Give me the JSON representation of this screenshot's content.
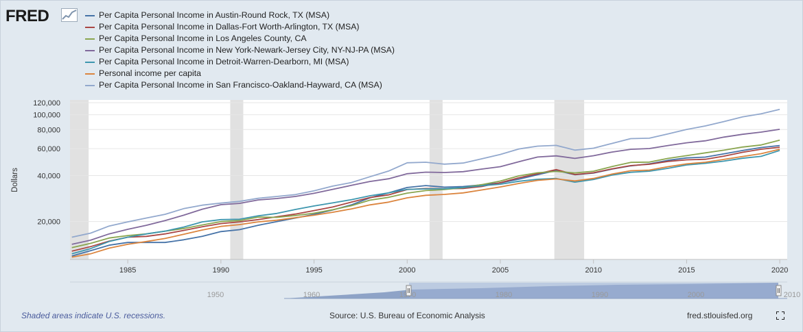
{
  "brand": {
    "logo_text": "FRED"
  },
  "legend_label": {
    "austin": "Per Capita Personal Income in Austin-Round Rock, TX (MSA)",
    "dallas": "Per Capita Personal Income in Dallas-Fort Worth-Arlington, TX (MSA)",
    "la": "Per Capita Personal Income in Los Angeles County, CA",
    "ny": "Per Capita Personal Income in New York-Newark-Jersey City, NY-NJ-PA (MSA)",
    "detroit": "Per Capita Personal Income in Detroit-Warren-Dearborn, MI (MSA)",
    "us": "Personal income per capita",
    "sf": "Per Capita Personal Income in San Francisco-Oakland-Hayward, CA (MSA)"
  },
  "footer": {
    "recession_note": "Shaded areas indicate U.S. recessions.",
    "source": "Source: U.S. Bureau of Economic Analysis",
    "site": "fred.stlouisfed.org"
  },
  "chart_data": {
    "type": "line",
    "title": "",
    "xlabel": "",
    "ylabel": "Dollars",
    "y_scale": "log",
    "xlim": [
      1981.9,
      2020.4
    ],
    "ylim": [
      11300,
      125000
    ],
    "y_ticks": [
      20000,
      40000,
      60000,
      80000,
      100000,
      120000
    ],
    "y_tick_labels": [
      "20,000",
      "40,000",
      "60,000",
      "80,000",
      "100,000",
      "120,000"
    ],
    "x_ticks": [
      1985,
      1990,
      1995,
      2000,
      2005,
      2010,
      2015,
      2020
    ],
    "grid": "horizontal",
    "recessions": [
      [
        1981.9,
        1982.9
      ],
      [
        1990.5,
        1991.2
      ],
      [
        2001.2,
        2001.9
      ],
      [
        2007.9,
        2009.5
      ]
    ],
    "x": [
      1982,
      1983,
      1984,
      1985,
      1986,
      1987,
      1988,
      1989,
      1990,
      1991,
      1992,
      1993,
      1994,
      1995,
      1996,
      1997,
      1998,
      1999,
      2000,
      2001,
      2002,
      2003,
      2004,
      2005,
      2006,
      2007,
      2008,
      2009,
      2010,
      2011,
      2012,
      2013,
      2014,
      2015,
      2016,
      2017,
      2018,
      2019,
      2020
    ],
    "series": [
      {
        "name": "Per Capita Personal Income in Austin-Round Rock, TX (MSA)",
        "color": "#4572a7",
        "values": [
          11900,
          12900,
          14000,
          14600,
          14600,
          14600,
          15200,
          16000,
          17200,
          17700,
          18900,
          20000,
          21100,
          22300,
          23800,
          25700,
          28600,
          30800,
          33400,
          34400,
          33600,
          33900,
          34800,
          35800,
          37900,
          40500,
          43200,
          40500,
          41500,
          44100,
          46300,
          47700,
          50300,
          52200,
          52800,
          55500,
          58300,
          61000,
          62900
        ]
      },
      {
        "name": "Per Capita Personal Income in Dallas-Fort Worth-Arlington, TX (MSA)",
        "color": "#aa4643",
        "values": [
          12800,
          13700,
          14900,
          15800,
          16000,
          16600,
          17500,
          18500,
          19400,
          19900,
          20600,
          21500,
          22400,
          23600,
          24900,
          26800,
          28700,
          29900,
          32400,
          32900,
          32800,
          32900,
          33900,
          35900,
          38700,
          41100,
          43800,
          40600,
          41700,
          44300,
          46500,
          47400,
          49500,
          50700,
          51100,
          53600,
          56800,
          59500,
          61300
        ]
      },
      {
        "name": "Per Capita Personal Income in Los Angeles County, CA",
        "color": "#89a54e",
        "values": [
          13500,
          14400,
          15600,
          16200,
          16600,
          17300,
          18000,
          19000,
          20000,
          20300,
          21400,
          21300,
          21900,
          22700,
          23900,
          25400,
          27600,
          28800,
          30700,
          31900,
          32400,
          33300,
          34900,
          36800,
          39800,
          41700,
          42600,
          41600,
          42700,
          45800,
          48800,
          49000,
          51800,
          54000,
          56300,
          58600,
          61500,
          63400,
          68200
        ]
      },
      {
        "name": "Per Capita Personal Income in New York-Newark-Jersey City, NY-NJ-PA (MSA)",
        "color": "#80699b",
        "values": [
          14200,
          15100,
          16600,
          17800,
          18900,
          20300,
          22000,
          24100,
          25800,
          26300,
          27700,
          28300,
          29200,
          30600,
          32500,
          34500,
          36600,
          38100,
          41100,
          42100,
          41900,
          42400,
          44100,
          45700,
          49300,
          52900,
          53800,
          51800,
          53900,
          57000,
          59400,
          60100,
          62900,
          65500,
          67500,
          71400,
          74500,
          77000,
          80300
        ]
      },
      {
        "name": "Per Capita Personal Income in Detroit-Warren-Dearborn, MI (MSA)",
        "color": "#3d96ae",
        "values": [
          12300,
          13300,
          14800,
          15800,
          16600,
          17300,
          18400,
          19900,
          20600,
          20700,
          21800,
          22600,
          24000,
          25300,
          26500,
          27800,
          29500,
          30800,
          32500,
          32700,
          32800,
          33400,
          34300,
          35100,
          36700,
          37800,
          38300,
          36200,
          37700,
          40300,
          42000,
          42700,
          44600,
          46900,
          48100,
          49700,
          51900,
          53400,
          58400
        ]
      },
      {
        "name": "Personal income per capita",
        "color": "#db843d",
        "values": [
          11700,
          12300,
          13400,
          14200,
          14800,
          15500,
          16500,
          17600,
          18600,
          19100,
          19900,
          20400,
          21200,
          22000,
          23000,
          24200,
          25700,
          26800,
          28600,
          29700,
          30100,
          30800,
          32200,
          33700,
          35500,
          37200,
          38000,
          36900,
          38300,
          40900,
          43000,
          43400,
          45700,
          47700,
          48900,
          51000,
          53300,
          55600,
          59500
        ]
      },
      {
        "name": "Per Capita Personal Income in San Francisco-Oakland-Hayward, CA (MSA)",
        "color": "#92a8cd",
        "values": [
          15800,
          16800,
          18700,
          19900,
          21100,
          22300,
          24300,
          25600,
          26400,
          27100,
          28400,
          29200,
          30000,
          31800,
          34100,
          36000,
          39300,
          42800,
          48500,
          48900,
          47500,
          48300,
          51500,
          55000,
          59700,
          62300,
          63000,
          58700,
          60400,
          64900,
          69800,
          70200,
          74900,
          80100,
          84500,
          90200,
          96800,
          101500,
          108500
        ]
      }
    ]
  }
}
